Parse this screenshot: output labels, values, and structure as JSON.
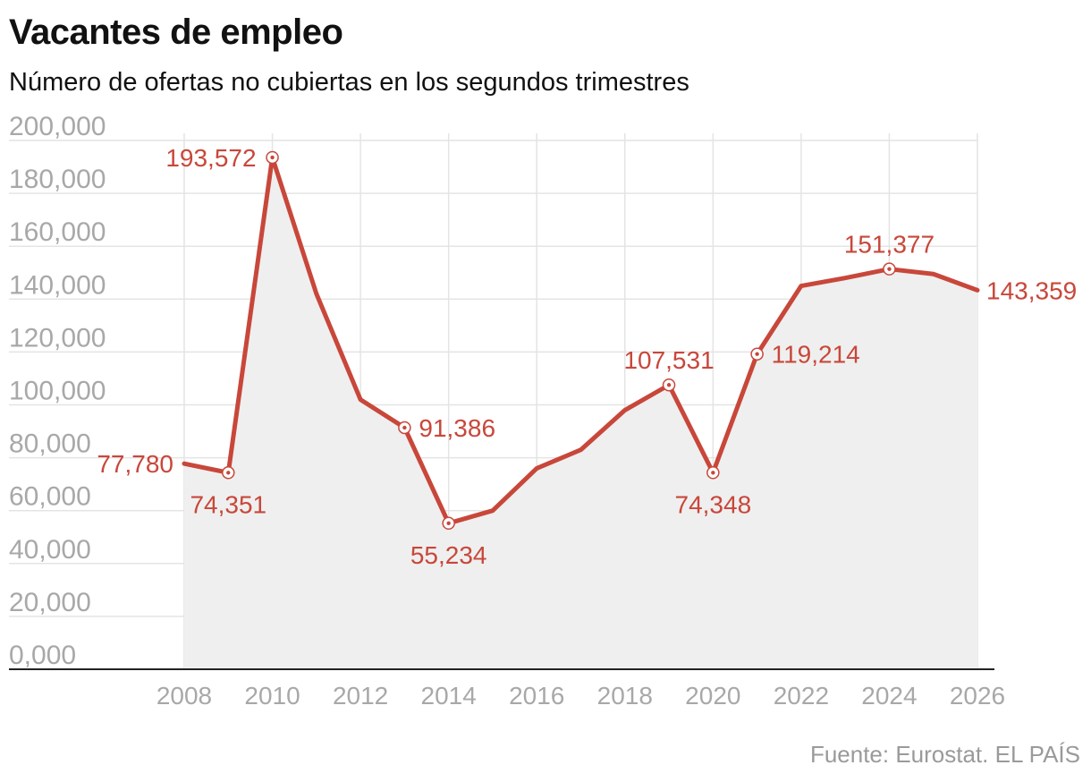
{
  "header": {
    "title": "Vacantes de empleo",
    "subtitle": "Número de ofertas no cubiertas en los segundos trimestres"
  },
  "footer": {
    "source": "Fuente: Eurostat",
    "publisher": ". EL PAÍS"
  },
  "colors": {
    "line": "#c8473a",
    "area": "#efefef",
    "grid": "#e4e4e4",
    "axis": "#222222",
    "tick_text": "#a8a8a8"
  },
  "chart_data": {
    "type": "area",
    "title": "Vacantes de empleo",
    "subtitle": "Número de ofertas no cubiertas en los segundos trimestres",
    "xlim": [
      2008,
      2026
    ],
    "ylim": [
      0,
      200000
    ],
    "x_ticks": [
      "2008",
      "2010",
      "2012",
      "2014",
      "2016",
      "2018",
      "2020",
      "2022",
      "2024",
      "2026"
    ],
    "y_ticks": [
      "0,000",
      "20,000",
      "40,000",
      "60,000",
      "80,000",
      "100,000",
      "120,000",
      "140,000",
      "160,000",
      "180,000",
      "200,000"
    ],
    "grid": true,
    "series": [
      {
        "x": [
          2008,
          2009,
          2010,
          2011,
          2012,
          2013,
          2014,
          2015,
          2016,
          2017,
          2018,
          2019,
          2020,
          2021,
          2022,
          2023,
          2024,
          2025,
          2026
        ],
        "y": [
          77780,
          74351,
          193572,
          142000,
          102000,
          91386,
          55234,
          60000,
          76000,
          83000,
          98000,
          107531,
          74348,
          119214,
          145000,
          148000,
          151377,
          149500,
          143359
        ]
      }
    ],
    "annotations": [
      {
        "x": 2008,
        "y": 77780,
        "label": "77,780",
        "marker": false
      },
      {
        "x": 2009,
        "y": 74351,
        "label": "74,351",
        "marker": true
      },
      {
        "x": 2010,
        "y": 193572,
        "label": "193,572",
        "marker": true
      },
      {
        "x": 2013,
        "y": 91386,
        "label": "91,386",
        "marker": true
      },
      {
        "x": 2014,
        "y": 55234,
        "label": "55,234",
        "marker": true
      },
      {
        "x": 2019,
        "y": 107531,
        "label": "107,531",
        "marker": true
      },
      {
        "x": 2020,
        "y": 74348,
        "label": "74,348",
        "marker": true
      },
      {
        "x": 2021,
        "y": 119214,
        "label": "119,214",
        "marker": true
      },
      {
        "x": 2024,
        "y": 151377,
        "label": "151,377",
        "marker": true
      },
      {
        "x": 2026,
        "y": 143359,
        "label": "143,359",
        "marker": false
      }
    ]
  }
}
